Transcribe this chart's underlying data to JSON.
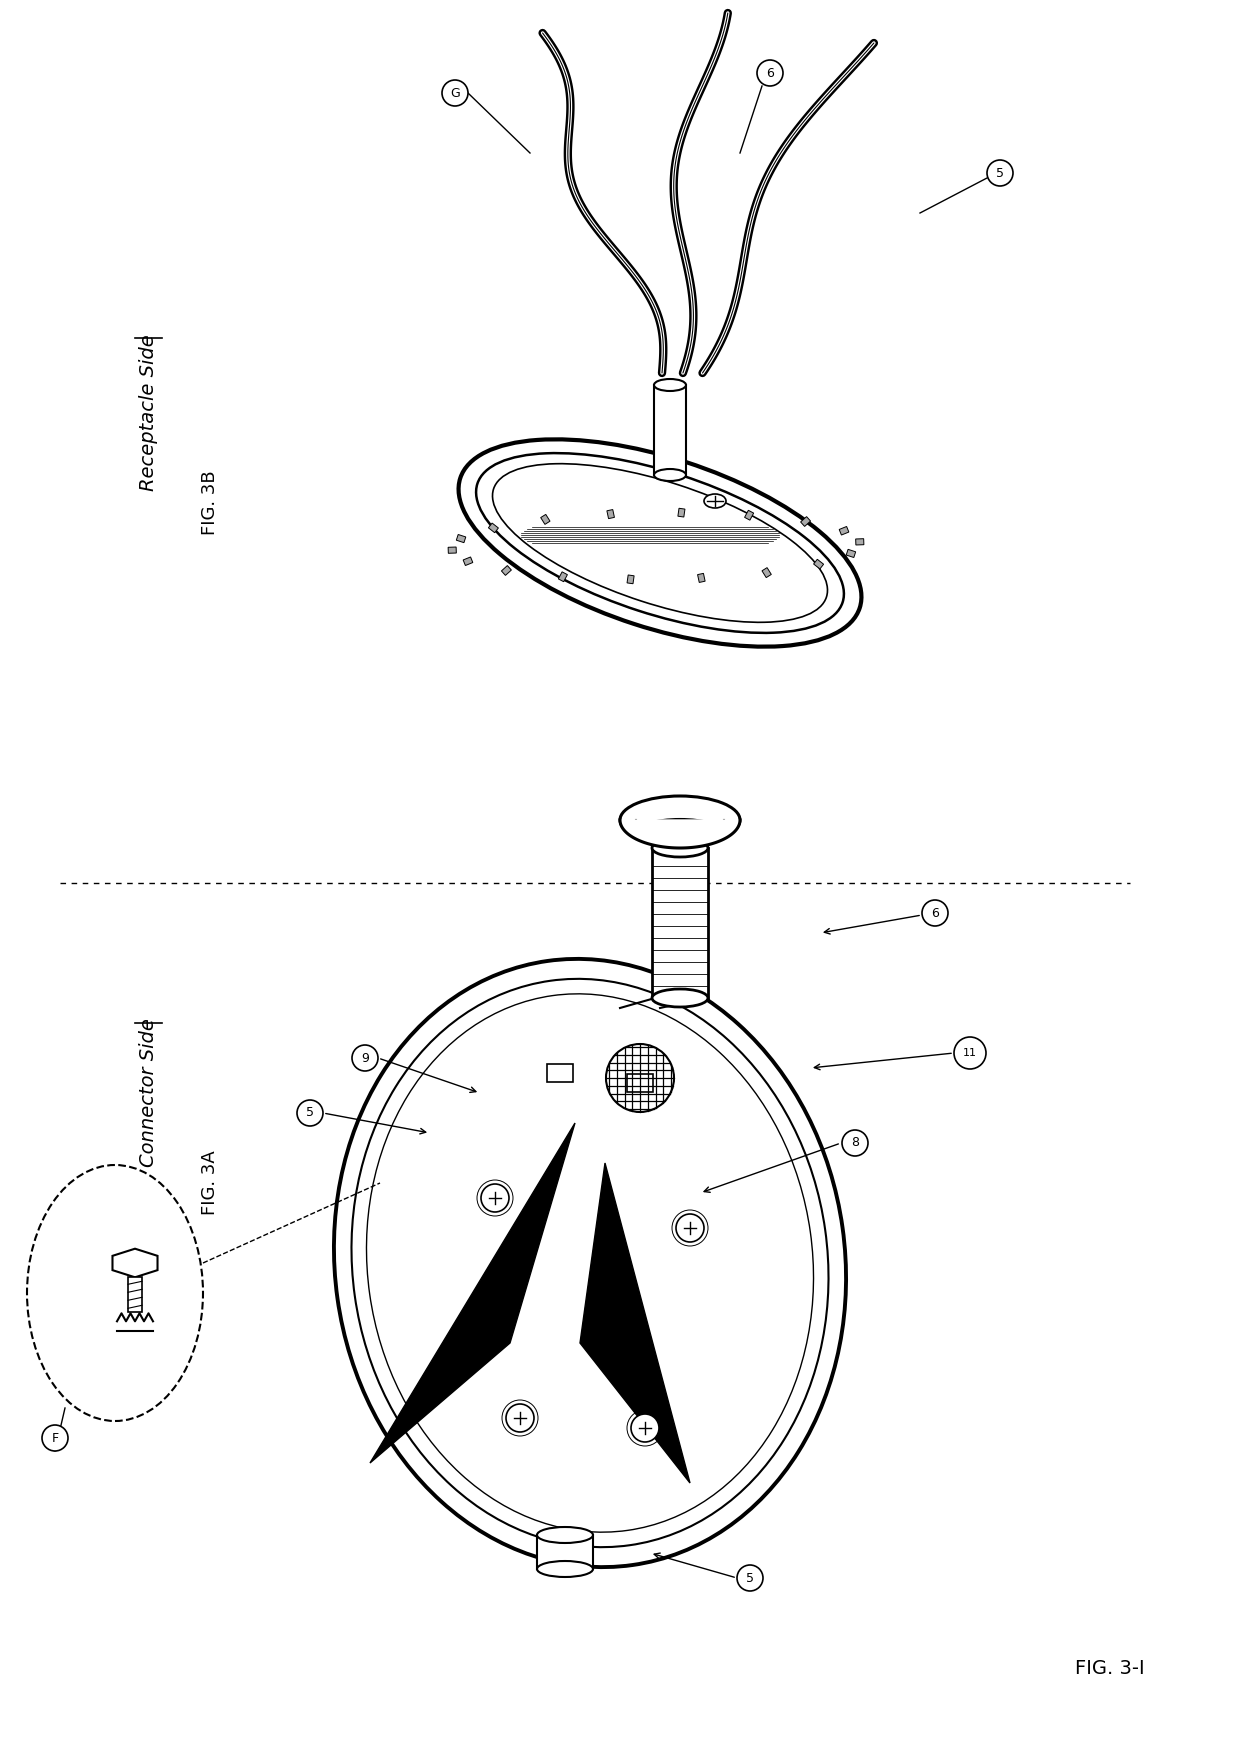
{
  "title": "FIG. 3-I",
  "fig3a_label": "FIG. 3A",
  "fig3b_label": "FIG. 3B",
  "connector_side_label": "Connector Side",
  "receptacle_side_label": "Receptacle Side",
  "background_color": "#ffffff",
  "line_color": "#000000",
  "text_color": "#1a1a1a"
}
